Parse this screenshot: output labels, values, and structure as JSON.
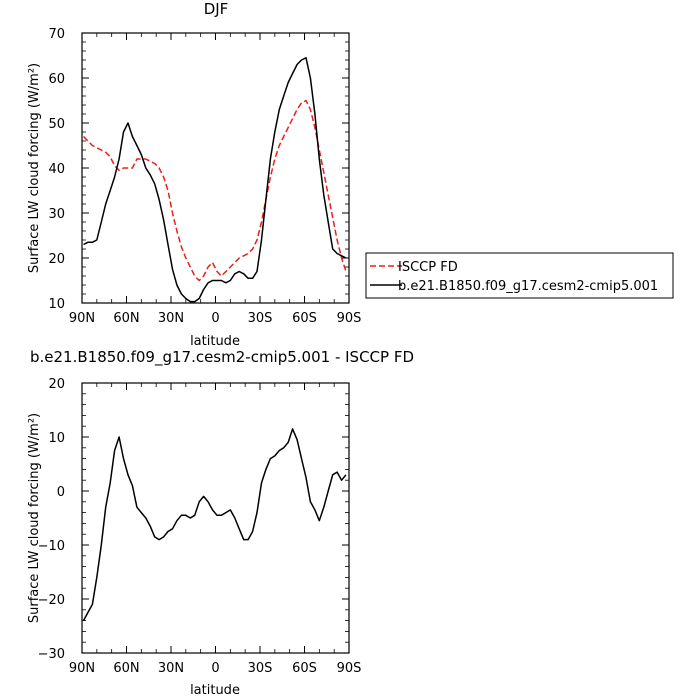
{
  "chart_data": [
    {
      "type": "line",
      "title": "DJF",
      "xlabel": "latitude",
      "ylabel": "Surface LW cloud forcing (W/m²)",
      "xlim": [
        90,
        -90
      ],
      "ylim": [
        10,
        70
      ],
      "x_ticks": [
        90,
        60,
        30,
        0,
        -30,
        -60,
        -90
      ],
      "x_tick_labels": [
        "90N",
        "60N",
        "30N",
        "0",
        "30S",
        "60S",
        "90S"
      ],
      "y_ticks": [
        10,
        20,
        30,
        40,
        50,
        60,
        70
      ],
      "y_tick_labels": [
        "10",
        "20",
        "30",
        "40",
        "50",
        "60",
        "70"
      ],
      "legend_position": "right",
      "series": [
        {
          "name": "ISCCP FD",
          "color": "#e8201a",
          "dash": "dashed",
          "x": [
            89,
            86,
            83,
            80,
            77,
            74,
            71,
            68,
            65,
            62,
            59,
            56,
            53,
            50,
            47,
            44,
            41,
            38,
            35,
            32,
            29,
            26,
            23,
            20,
            17,
            14,
            11,
            8,
            5,
            2,
            -1,
            -4,
            -7,
            -10,
            -13,
            -16,
            -19,
            -22,
            -25,
            -28,
            -31,
            -34,
            -37,
            -40,
            -43,
            -46,
            -49,
            -52,
            -55,
            -58,
            -61,
            -64,
            -67,
            -70,
            -73,
            -76,
            -79,
            -82,
            -85,
            -88
          ],
          "y": [
            47.0,
            46.0,
            45.0,
            44.5,
            44.0,
            43.5,
            42.5,
            40.5,
            39.5,
            40.0,
            40.0,
            40.0,
            42.0,
            42.0,
            42.0,
            41.5,
            41.0,
            40.0,
            38.0,
            35.0,
            30.0,
            26.0,
            22.5,
            20.0,
            18.0,
            16.0,
            15.0,
            16.0,
            18.0,
            19.0,
            17.0,
            16.0,
            17.0,
            18.0,
            19.0,
            20.0,
            20.5,
            21.0,
            22.0,
            24.0,
            28.0,
            33.0,
            38.0,
            42.0,
            45.0,
            47.0,
            49.0,
            51.0,
            53.0,
            54.5,
            55.0,
            53.0,
            49.0,
            44.0,
            39.0,
            34.0,
            29.0,
            24.0,
            20.0,
            17.0
          ]
        },
        {
          "name": "b.e21.B1850.f09_g17.cesm2-cmip5.001",
          "color": "#000000",
          "dash": "solid",
          "x": [
            89,
            86,
            83,
            80,
            77,
            74,
            71,
            68,
            65,
            62,
            59,
            56,
            53,
            50,
            47,
            44,
            41,
            38,
            35,
            32,
            29,
            26,
            23,
            20,
            17,
            14,
            11,
            8,
            5,
            2,
            -1,
            -4,
            -7,
            -10,
            -13,
            -16,
            -19,
            -22,
            -25,
            -28,
            -31,
            -34,
            -37,
            -40,
            -43,
            -46,
            -49,
            -52,
            -55,
            -58,
            -61,
            -64,
            -67,
            -70,
            -73,
            -76,
            -79,
            -82,
            -85,
            -88
          ],
          "y": [
            23.0,
            23.5,
            23.5,
            24.0,
            28.0,
            32.0,
            35.0,
            38.0,
            42.0,
            48.0,
            50.0,
            47.0,
            45.0,
            43.0,
            40.0,
            38.5,
            36.5,
            33.0,
            28.5,
            23.0,
            17.5,
            14.0,
            12.0,
            11.0,
            10.3,
            10.3,
            11.0,
            13.0,
            14.5,
            15.0,
            15.0,
            15.0,
            14.5,
            15.0,
            16.5,
            17.0,
            16.5,
            15.5,
            15.5,
            17.0,
            24.0,
            33.0,
            42.0,
            48.0,
            53.0,
            56.0,
            59.0,
            61.0,
            63.0,
            64.0,
            64.5,
            60.0,
            52.0,
            42.0,
            34.0,
            28.0,
            22.0,
            21.0,
            20.5,
            20.0
          ]
        }
      ]
    },
    {
      "type": "line",
      "title": "b.e21.B1850.f09_g17.cesm2-cmip5.001 - ISCCP FD",
      "xlabel": "latitude",
      "ylabel": "Surface LW cloud forcing (W/m²)",
      "xlim": [
        90,
        -90
      ],
      "ylim": [
        -30,
        20
      ],
      "x_ticks": [
        90,
        60,
        30,
        0,
        -30,
        -60,
        -90
      ],
      "x_tick_labels": [
        "90N",
        "60N",
        "30N",
        "0",
        "30S",
        "60S",
        "90S"
      ],
      "y_ticks": [
        -30,
        -20,
        -10,
        0,
        10,
        20
      ],
      "y_tick_labels": [
        "−30",
        "−20",
        "−10",
        "0",
        "10",
        "20"
      ],
      "series": [
        {
          "color": "#000000",
          "dash": "solid",
          "x": [
            89,
            86,
            83,
            80,
            77,
            74,
            71,
            68,
            65,
            62,
            59,
            56,
            53,
            50,
            47,
            44,
            41,
            38,
            35,
            32,
            29,
            26,
            23,
            20,
            17,
            14,
            11,
            8,
            5,
            2,
            -1,
            -4,
            -7,
            -10,
            -13,
            -16,
            -19,
            -22,
            -25,
            -28,
            -31,
            -34,
            -37,
            -40,
            -43,
            -46,
            -49,
            -52,
            -55,
            -58,
            -61,
            -64,
            -67,
            -70,
            -73,
            -76,
            -79,
            -82,
            -85,
            -88
          ],
          "y": [
            -24.0,
            -22.5,
            -21.0,
            -16.0,
            -10.0,
            -3.0,
            1.5,
            7.5,
            10.0,
            6.0,
            3.0,
            1.0,
            -3.0,
            -4.0,
            -5.0,
            -6.5,
            -8.5,
            -9.0,
            -8.5,
            -7.5,
            -7.0,
            -5.5,
            -4.5,
            -4.5,
            -5.0,
            -4.5,
            -2.0,
            -1.0,
            -2.0,
            -3.5,
            -4.5,
            -4.5,
            -4.0,
            -3.5,
            -5.0,
            -7.0,
            -9.0,
            -9.0,
            -7.5,
            -4.0,
            1.5,
            4.0,
            6.0,
            6.5,
            7.5,
            8.0,
            9.0,
            11.5,
            9.5,
            6.0,
            2.5,
            -2.0,
            -3.5,
            -5.5,
            -3.0,
            0.0,
            3.0,
            3.5,
            2.0,
            3.0
          ]
        }
      ]
    }
  ]
}
